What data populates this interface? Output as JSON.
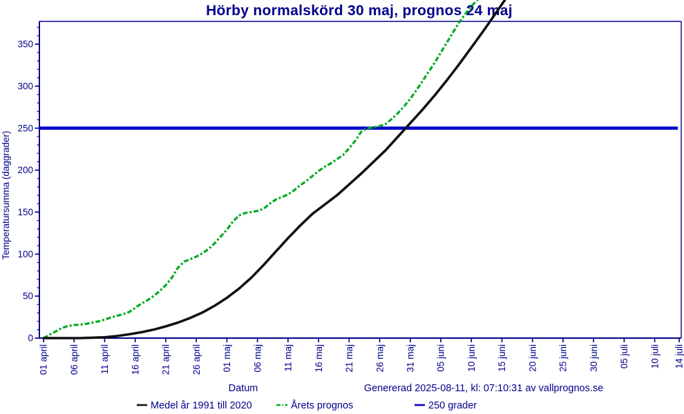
{
  "title": "Hörby normalskörd 30 maj, prognos 24 maj",
  "footer": {
    "datum_label": "Datum",
    "generated": "Genererad 2025-08-11, kl: 07:10:31 av vallprognos.se"
  },
  "legend": [
    {
      "label": "Medel år 1991 till 2020",
      "color": "#111111",
      "dash": ""
    },
    {
      "label": "Årets prognos",
      "color": "#00AA22",
      "dash": "6 2.5 1.5 2.5"
    },
    {
      "label": "250 grader",
      "color": "#0000CC",
      "dash": ""
    }
  ],
  "chart_data": {
    "type": "line",
    "title": "Hörby normalskörd 30 maj, prognos 24 maj",
    "xlabel": "Datum",
    "ylabel": "Temperatursumma (daggrader)",
    "x_tick_labels": [
      "01 april",
      "06 april",
      "11 april",
      "16 april",
      "21 april",
      "26 april",
      "01 maj",
      "06 maj",
      "11 maj",
      "16 maj",
      "21 maj",
      "26 maj",
      "31 maj",
      "05 juni",
      "10 juni",
      "15 juni",
      "20 juni",
      "25 juni",
      "30 juni",
      "05 juli",
      "10 juli",
      "14 juli"
    ],
    "x_tick_days": [
      0,
      5,
      10,
      15,
      20,
      25,
      30,
      35,
      40,
      45,
      50,
      55,
      60,
      65,
      70,
      75,
      80,
      85,
      90,
      95,
      100,
      104
    ],
    "x_range_days": 104,
    "y_ticks": [
      0,
      50,
      100,
      150,
      200,
      250,
      300,
      350
    ],
    "y_minor_step": 10,
    "y_minor_max": 370,
    "ylim": [
      0,
      377
    ],
    "grid": "off",
    "legend_position": "bottom",
    "axis_color": "#00008B",
    "text_color": "#00008B",
    "threshold": {
      "label": "250 grader",
      "value": 250,
      "color": "#0000CC"
    },
    "series": [
      {
        "name": "Medel år 1991 till 2020",
        "color": "#111111",
        "line": "solid",
        "day_start": 0,
        "day_step": 2,
        "values": [
          0,
          0,
          0,
          0,
          0.5,
          1,
          2.5,
          4.5,
          7,
          10,
          14,
          18.5,
          24,
          30.5,
          38.5,
          48,
          59,
          72,
          87,
          103,
          119,
          134,
          148,
          159,
          170,
          183,
          196,
          210,
          224,
          240,
          256,
          272,
          289,
          307,
          326,
          346,
          366,
          387,
          408
        ]
      },
      {
        "name": "Årets prognos",
        "color": "#00AA22",
        "line": "dashed",
        "day_start": 0,
        "day_step": 1,
        "values": [
          0,
          4,
          8,
          12,
          14.5,
          15.5,
          16,
          17,
          18.5,
          20,
          22,
          24.5,
          26.5,
          28.5,
          31,
          36,
          41,
          45,
          50,
          56,
          63,
          72,
          84,
          91,
          94,
          97,
          101,
          106,
          113,
          121,
          129,
          139,
          146,
          149,
          150,
          151.5,
          154,
          160,
          165,
          168,
          171,
          176,
          182,
          187,
          193,
          199,
          204,
          208,
          213,
          218,
          226,
          235,
          246,
          250,
          251,
          252.5,
          255,
          261,
          268,
          276,
          285,
          295,
          306,
          317,
          328,
          340,
          352,
          364,
          376,
          386,
          395,
          403,
          411
        ]
      }
    ]
  }
}
